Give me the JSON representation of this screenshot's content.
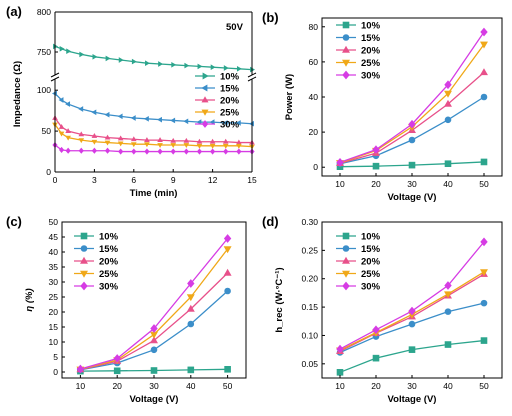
{
  "colors": {
    "10%": "#2ca58d",
    "15%": "#3b8ec9",
    "20%": "#e8508a",
    "25%": "#f0a818",
    "30%": "#d63ce4"
  },
  "chart_data": [
    {
      "panel": "(a)",
      "type": "line",
      "annotation": "50V",
      "xlabel": "Time (min)",
      "ylabel": "Impedance (Ω)",
      "xlim": [
        0,
        15
      ],
      "x_ticks": [
        "0",
        "3",
        "6",
        "9",
        "12",
        "15"
      ],
      "y_ticks_upper": [
        "750",
        "800"
      ],
      "y_ticks_lower": [
        "0",
        "50",
        "100"
      ],
      "broken_axis": true,
      "y_break": [
        110,
        725
      ],
      "ylim_lower": [
        0,
        110
      ],
      "ylim_upper": [
        725,
        800
      ],
      "legend_position": "right",
      "series": [
        {
          "name": "10%",
          "marker": "triangle-right",
          "x": [
            0,
            0.5,
            1,
            2,
            3,
            4,
            5,
            6,
            7,
            8,
            9,
            10,
            11,
            12,
            13,
            14,
            15
          ],
          "y": [
            757,
            754,
            751,
            747,
            744,
            742,
            740,
            738,
            736,
            735,
            734,
            733,
            732,
            731,
            730,
            729,
            728
          ]
        },
        {
          "name": "15%",
          "marker": "triangle-left",
          "x": [
            0,
            0.5,
            1,
            2,
            3,
            4,
            5,
            6,
            7,
            8,
            9,
            10,
            11,
            12,
            13,
            14,
            15
          ],
          "y": [
            96,
            88,
            83,
            77,
            73,
            70,
            68,
            66,
            65,
            64,
            63,
            62,
            61,
            61,
            60,
            60,
            59
          ]
        },
        {
          "name": "20%",
          "marker": "triangle-up",
          "x": [
            0,
            0.5,
            1,
            2,
            3,
            4,
            5,
            6,
            7,
            8,
            9,
            10,
            11,
            12,
            13,
            14,
            15
          ],
          "y": [
            66,
            55,
            50,
            46,
            44,
            42,
            41,
            40,
            39,
            39,
            38,
            38,
            37,
            37,
            37,
            36,
            36
          ]
        },
        {
          "name": "25%",
          "marker": "triangle-down",
          "x": [
            0,
            0.5,
            1,
            2,
            3,
            4,
            5,
            6,
            7,
            8,
            9,
            10,
            11,
            12,
            13,
            14,
            15
          ],
          "y": [
            58,
            47,
            42,
            39,
            37,
            36,
            35,
            34,
            34,
            33,
            33,
            33,
            32,
            32,
            32,
            32,
            31
          ]
        },
        {
          "name": "30%",
          "marker": "diamond",
          "x": [
            0,
            0.5,
            1,
            2,
            3,
            4,
            5,
            6,
            7,
            8,
            9,
            10,
            11,
            12,
            13,
            14,
            15
          ],
          "y": [
            33,
            27,
            26,
            26,
            26,
            26,
            25,
            25,
            25,
            25,
            25,
            25,
            25,
            25,
            25,
            25,
            25
          ]
        }
      ]
    },
    {
      "panel": "(b)",
      "type": "line",
      "xlabel": "Voltage (V)",
      "ylabel": "Power (W)",
      "xlim": [
        5,
        55
      ],
      "ylim": [
        -5,
        85
      ],
      "x_ticks": [
        "10",
        "20",
        "30",
        "40",
        "50"
      ],
      "y_ticks": [
        "0",
        "20",
        "40",
        "60",
        "80"
      ],
      "legend_position": "top-left",
      "series": [
        {
          "name": "10%",
          "marker": "square",
          "x": [
            10,
            20,
            30,
            40,
            50
          ],
          "y": [
            0.3,
            0.6,
            1.2,
            2.0,
            3.0
          ]
        },
        {
          "name": "15%",
          "marker": "circle",
          "x": [
            10,
            20,
            30,
            40,
            50
          ],
          "y": [
            2.0,
            6.5,
            15.5,
            27,
            40
          ]
        },
        {
          "name": "20%",
          "marker": "triangle-up",
          "x": [
            10,
            20,
            30,
            40,
            50
          ],
          "y": [
            2.2,
            8.0,
            21,
            36,
            54
          ]
        },
        {
          "name": "25%",
          "marker": "triangle-down",
          "x": [
            10,
            20,
            30,
            40,
            50
          ],
          "y": [
            2.5,
            9.5,
            23,
            42,
            70
          ]
        },
        {
          "name": "30%",
          "marker": "diamond",
          "x": [
            10,
            20,
            30,
            40,
            50
          ],
          "y": [
            2.8,
            10,
            24.5,
            47,
            77
          ]
        }
      ]
    },
    {
      "panel": "(c)",
      "type": "line",
      "xlabel": "Voltage (V)",
      "ylabel": "η (%)",
      "xlim": [
        5,
        55
      ],
      "ylim": [
        -2,
        50
      ],
      "x_ticks": [
        "10",
        "20",
        "30",
        "40",
        "50"
      ],
      "y_ticks": [
        "0",
        "5",
        "10",
        "15",
        "20",
        "25",
        "30",
        "35",
        "40",
        "45",
        "50"
      ],
      "legend_position": "top-left",
      "series": [
        {
          "name": "10%",
          "marker": "square",
          "x": [
            10,
            20,
            30,
            40,
            50
          ],
          "y": [
            0.3,
            0.4,
            0.5,
            0.7,
            0.9
          ]
        },
        {
          "name": "15%",
          "marker": "circle",
          "x": [
            10,
            20,
            30,
            40,
            50
          ],
          "y": [
            0.7,
            3.0,
            7.4,
            16,
            27
          ]
        },
        {
          "name": "20%",
          "marker": "triangle-up",
          "x": [
            10,
            20,
            30,
            40,
            50
          ],
          "y": [
            0.8,
            3.6,
            10.5,
            21,
            33
          ]
        },
        {
          "name": "25%",
          "marker": "triangle-down",
          "x": [
            10,
            20,
            30,
            40,
            50
          ],
          "y": [
            0.9,
            4.0,
            12.5,
            25,
            41
          ]
        },
        {
          "name": "30%",
          "marker": "diamond",
          "x": [
            10,
            20,
            30,
            40,
            50
          ],
          "y": [
            1.0,
            4.5,
            14.5,
            29.5,
            44.5
          ]
        }
      ]
    },
    {
      "panel": "(d)",
      "type": "line",
      "xlabel": "Voltage (V)",
      "ylabel": "h_rec (W·°C⁻¹)",
      "xlim": [
        5,
        55
      ],
      "ylim": [
        0.025,
        0.3
      ],
      "x_ticks": [
        "10",
        "20",
        "30",
        "40",
        "50"
      ],
      "y_ticks": [
        "0.05",
        "0.10",
        "0.15",
        "0.20",
        "0.25",
        "0.30"
      ],
      "legend_position": "top-left",
      "series": [
        {
          "name": "10%",
          "marker": "square",
          "x": [
            10,
            20,
            30,
            40,
            50
          ],
          "y": [
            0.035,
            0.06,
            0.075,
            0.084,
            0.091
          ]
        },
        {
          "name": "15%",
          "marker": "circle",
          "x": [
            10,
            20,
            30,
            40,
            50
          ],
          "y": [
            0.07,
            0.098,
            0.12,
            0.142,
            0.157
          ]
        },
        {
          "name": "20%",
          "marker": "triangle-up",
          "x": [
            10,
            20,
            30,
            40,
            50
          ],
          "y": [
            0.072,
            0.104,
            0.133,
            0.17,
            0.208
          ]
        },
        {
          "name": "25%",
          "marker": "triangle-down",
          "x": [
            10,
            20,
            30,
            40,
            50
          ],
          "y": [
            0.074,
            0.105,
            0.137,
            0.173,
            0.212
          ]
        },
        {
          "name": "30%",
          "marker": "diamond",
          "x": [
            10,
            20,
            30,
            40,
            50
          ],
          "y": [
            0.076,
            0.11,
            0.143,
            0.188,
            0.265
          ]
        }
      ]
    }
  ]
}
